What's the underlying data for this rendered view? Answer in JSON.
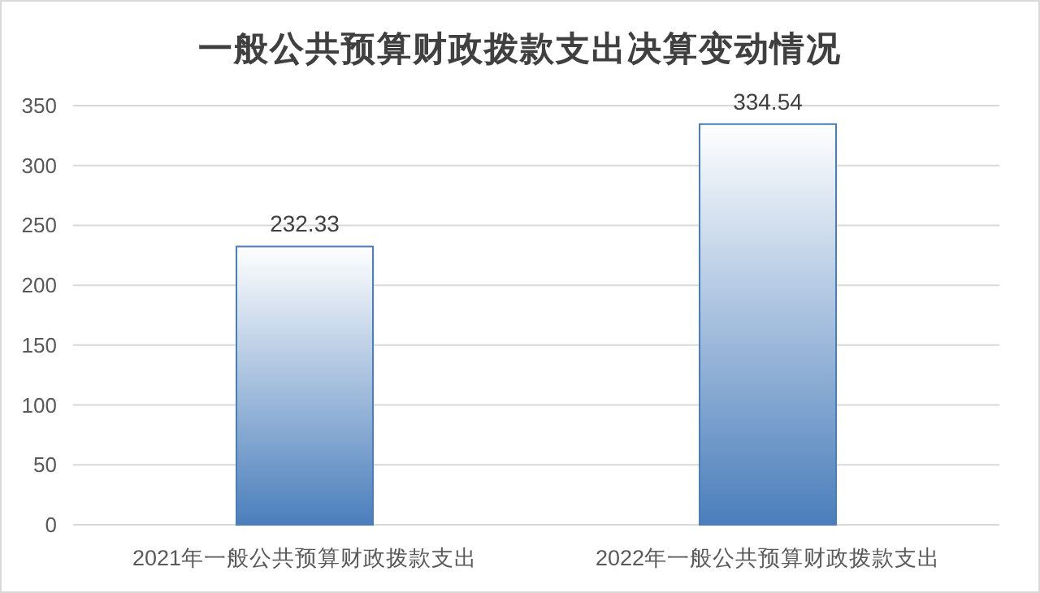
{
  "chart_data": {
    "type": "bar",
    "title": "一般公共预算财政拨款支出决算变动情况",
    "categories": [
      "2021年一般公共预算财政拨款支出",
      "2022年一般公共预算财政拨款支出"
    ],
    "values": [
      232.33,
      334.54
    ],
    "color": "#4a7ebb",
    "ylim": [
      0,
      350
    ],
    "yticks": [
      0,
      50,
      100,
      150,
      200,
      250,
      300,
      350
    ],
    "grid": "y",
    "data_labels": true
  }
}
